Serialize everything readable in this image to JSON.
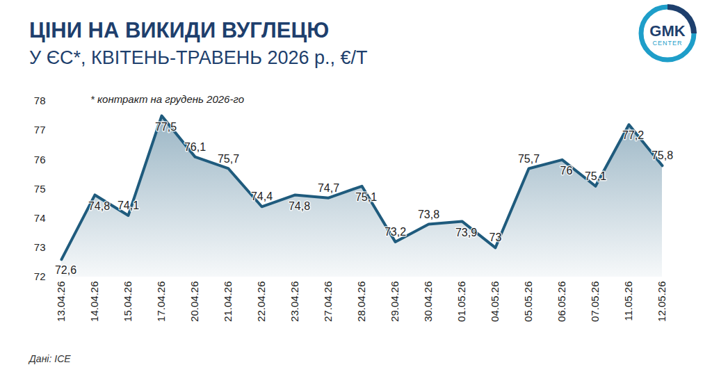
{
  "chart_data": {
    "type": "area",
    "title": "ЦІНИ НА ВИКИДИ ВУГЛЕЦЮ",
    "subtitle": "У ЄС*, КВІТЕНЬ-ТРАВЕНЬ 2026 р., €/Т",
    "annotation": "* контракт на грудень 2026-го",
    "source": "Дані: ICE",
    "logo_text": "GMK",
    "logo_subtext": "CENTER",
    "categories": [
      "13.04.26",
      "14.04.26",
      "15.04.26",
      "17.04.26",
      "20.04.26",
      "21.04.26",
      "22.04.26",
      "23.04.26",
      "27.04.26",
      "28.04.26",
      "29.04.26",
      "30.04.26",
      "01.05.26",
      "04.05.26",
      "05.05.26",
      "06.05.26",
      "07.05.26",
      "11.05.26",
      "12.05.26"
    ],
    "values": [
      72.6,
      74.8,
      74.1,
      77.5,
      76.1,
      75.7,
      74.4,
      74.8,
      74.7,
      75.1,
      73.2,
      73.8,
      73.9,
      73,
      75.7,
      76,
      75.1,
      77.2,
      75.8
    ],
    "value_labels": [
      "72,6",
      "74,8",
      "74,1",
      "77,5",
      "76,1",
      "75,7",
      "74,4",
      "74,8",
      "74,7",
      "75,1",
      "73,2",
      "73,8",
      "73,9",
      "73",
      "75,7",
      "76",
      "75,1",
      "77,2",
      "75,8"
    ],
    "color": "#1f5b7d",
    "ylim": [
      72,
      78
    ],
    "yticks": [
      72,
      73,
      74,
      75,
      76,
      77,
      78
    ],
    "grid": false,
    "data_labels": true
  }
}
